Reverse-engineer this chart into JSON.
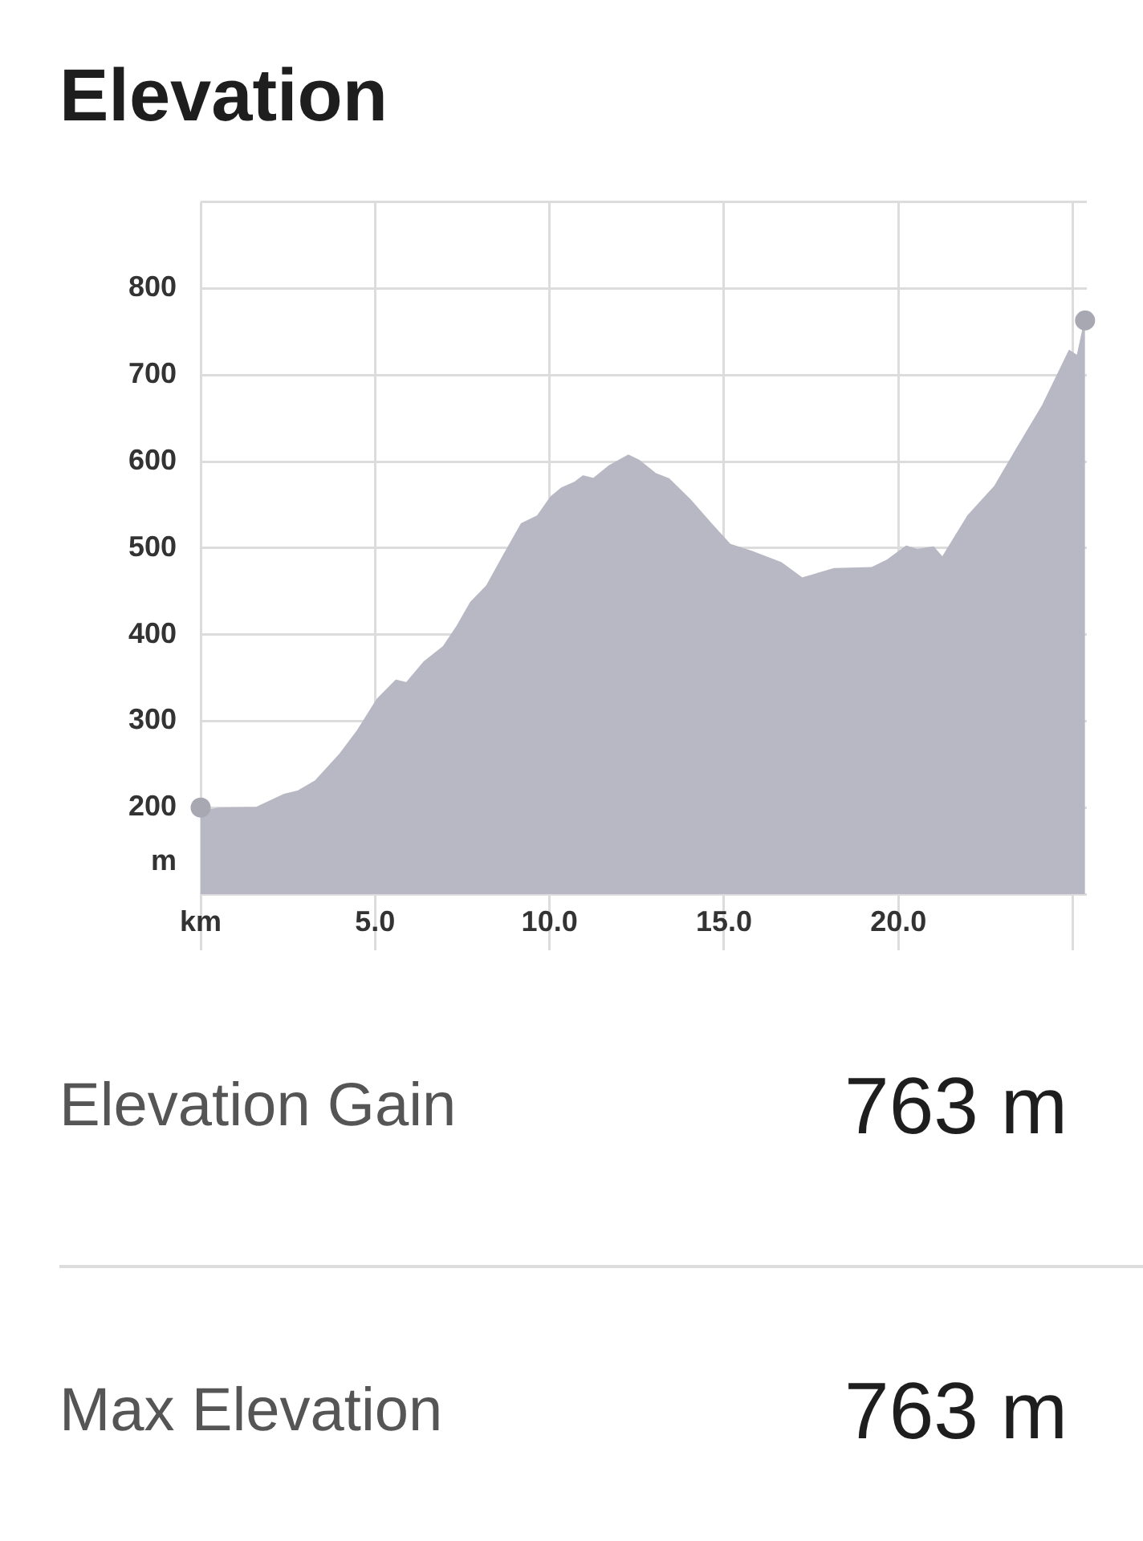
{
  "chart_data": {
    "type": "area",
    "title": "Elevation",
    "ylabel": "m",
    "xlim": [
      0,
      25.4
    ],
    "xticks": [
      {
        "value": 0,
        "label": "km"
      },
      {
        "value": 5,
        "label": "5.0"
      },
      {
        "value": 10,
        "label": "10.0"
      },
      {
        "value": 15,
        "label": "15.0"
      },
      {
        "value": 20,
        "label": "20.0"
      },
      {
        "value": 25,
        "label": null
      }
    ],
    "ylim": [
      100,
      900
    ],
    "yticks": [
      {
        "value": 100,
        "label": null
      },
      200,
      300,
      400,
      500,
      600,
      700,
      800,
      {
        "value": 900,
        "label": null
      }
    ],
    "grid": true,
    "legend": false,
    "marker": "none",
    "series": [
      {
        "color": "#b8b8c4",
        "x": [
          0,
          0.5,
          1.6,
          2.4,
          2.8,
          3.3,
          4.0,
          4.5,
          5.06,
          5.6,
          5.9,
          6.4,
          6.96,
          7.36,
          7.74,
          8.2,
          8.65,
          9.2,
          9.66,
          10.04,
          10.34,
          10.73,
          10.96,
          11.26,
          11.72,
          12.26,
          12.57,
          13.03,
          13.41,
          14.02,
          14.63,
          15.17,
          15.79,
          16.63,
          17.24,
          18.16,
          19.23,
          19.69,
          20.23,
          20.54,
          21.0,
          21.26,
          21.99,
          22.76,
          23.37,
          24.14,
          24.9,
          25.13,
          25.35
        ],
        "values": [
          195,
          199,
          200,
          215,
          219,
          231,
          262,
          289,
          325,
          347,
          344,
          368,
          386,
          410,
          437,
          456,
          489,
          528,
          537,
          559,
          569,
          576,
          583,
          580,
          595,
          607,
          601,
          586,
          580,
          556,
          528,
          504,
          496,
          483,
          465,
          476,
          477,
          486,
          502,
          498,
          501,
          489,
          537,
          571,
          613,
          665,
          728,
          722,
          763
        ]
      },
      {
        "type": "scatter",
        "marker": "circle",
        "color": "#a8a8b2",
        "x": [
          0,
          25.35
        ],
        "values": [
          200,
          763
        ]
      }
    ],
    "annotations": [
      "Elevation Gain",
      "763 m",
      "Max Elevation",
      "763 m"
    ]
  }
}
